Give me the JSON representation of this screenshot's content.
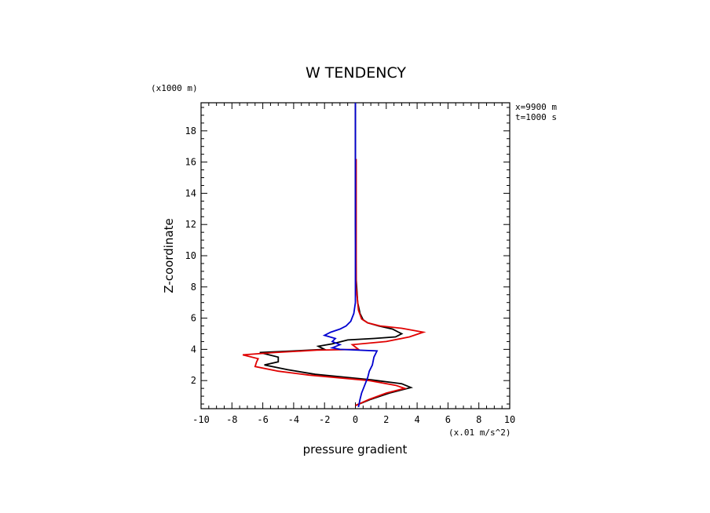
{
  "chart_data": {
    "type": "line",
    "title": "W TENDENCY",
    "xlabel": "pressure gradient",
    "ylabel": "Z-coordinate",
    "x_units": "(x.01 m/s^2)",
    "y_units": "(x1000 m)",
    "annotations": [
      "x=9900 m",
      "t=1000 s"
    ],
    "xlim": [
      -10,
      10
    ],
    "ylim": [
      0.2,
      19.8
    ],
    "xticks": [
      "-10",
      "-8",
      "-6",
      "-4",
      "-2",
      "0",
      "2",
      "4",
      "6",
      "8",
      "10"
    ],
    "yticks": [
      "2",
      "4",
      "6",
      "8",
      "10",
      "12",
      "14",
      "16",
      "18"
    ],
    "grid": false,
    "series": [
      {
        "color": "#000000",
        "points": [
          [
            0,
            0.4
          ],
          [
            1.0,
            0.8
          ],
          [
            2.2,
            1.2
          ],
          [
            3.6,
            1.55
          ],
          [
            3.0,
            1.8
          ],
          [
            1.0,
            2.05
          ],
          [
            -2.6,
            2.4
          ],
          [
            -4.4,
            2.7
          ],
          [
            -5.9,
            3.0
          ],
          [
            -5.0,
            3.2
          ],
          [
            -5.0,
            3.5
          ],
          [
            -6.2,
            3.8
          ],
          [
            -4.0,
            3.9
          ],
          [
            -2.0,
            4.0
          ],
          [
            -2.4,
            4.2
          ],
          [
            -1.5,
            4.35
          ],
          [
            -0.5,
            4.6
          ],
          [
            1.2,
            4.7
          ],
          [
            2.6,
            4.8
          ],
          [
            3.0,
            5.0
          ],
          [
            2.8,
            5.1
          ],
          [
            2.4,
            5.3
          ],
          [
            1.5,
            5.5
          ],
          [
            0.8,
            5.7
          ],
          [
            0.5,
            5.9
          ],
          [
            0.3,
            6.3
          ],
          [
            0.15,
            7.0
          ],
          [
            0.05,
            8.5
          ],
          [
            0.0,
            12.0
          ],
          [
            0.0,
            19.8
          ]
        ]
      },
      {
        "color": "#e00000",
        "points": [
          [
            0,
            0.4
          ],
          [
            0.9,
            0.8
          ],
          [
            2.0,
            1.2
          ],
          [
            3.2,
            1.5
          ],
          [
            2.6,
            1.7
          ],
          [
            0.9,
            2.0
          ],
          [
            -3.0,
            2.35
          ],
          [
            -5.0,
            2.6
          ],
          [
            -6.5,
            2.9
          ],
          [
            -6.4,
            3.2
          ],
          [
            -6.3,
            3.4
          ],
          [
            -7.3,
            3.65
          ],
          [
            -5.2,
            3.8
          ],
          [
            -2.5,
            3.95
          ],
          [
            0.2,
            4.0
          ],
          [
            0.0,
            4.15
          ],
          [
            -0.2,
            4.3
          ],
          [
            2.0,
            4.5
          ],
          [
            3.5,
            4.8
          ],
          [
            4.4,
            5.1
          ],
          [
            3.0,
            5.35
          ],
          [
            1.6,
            5.5
          ],
          [
            0.8,
            5.7
          ],
          [
            0.4,
            5.95
          ],
          [
            0.2,
            6.5
          ],
          [
            0.05,
            8.0
          ],
          [
            0.05,
            13.0
          ],
          [
            0.05,
            16.2
          ]
        ]
      },
      {
        "color": "#0000d0",
        "points": [
          [
            0.2,
            0.3
          ],
          [
            0.3,
            0.8
          ],
          [
            0.4,
            1.2
          ],
          [
            0.6,
            1.7
          ],
          [
            0.8,
            2.2
          ],
          [
            0.9,
            2.6
          ],
          [
            1.1,
            3.0
          ],
          [
            1.2,
            3.5
          ],
          [
            1.4,
            3.9
          ],
          [
            -1.0,
            4.0
          ],
          [
            -1.5,
            4.1
          ],
          [
            -1.0,
            4.3
          ],
          [
            -1.5,
            4.5
          ],
          [
            -1.3,
            4.7
          ],
          [
            -2.0,
            4.9
          ],
          [
            -1.6,
            5.1
          ],
          [
            -1.0,
            5.3
          ],
          [
            -0.6,
            5.5
          ],
          [
            -0.3,
            5.8
          ],
          [
            -0.1,
            6.3
          ],
          [
            0.0,
            7.0
          ],
          [
            0.0,
            19.8
          ]
        ]
      }
    ]
  }
}
